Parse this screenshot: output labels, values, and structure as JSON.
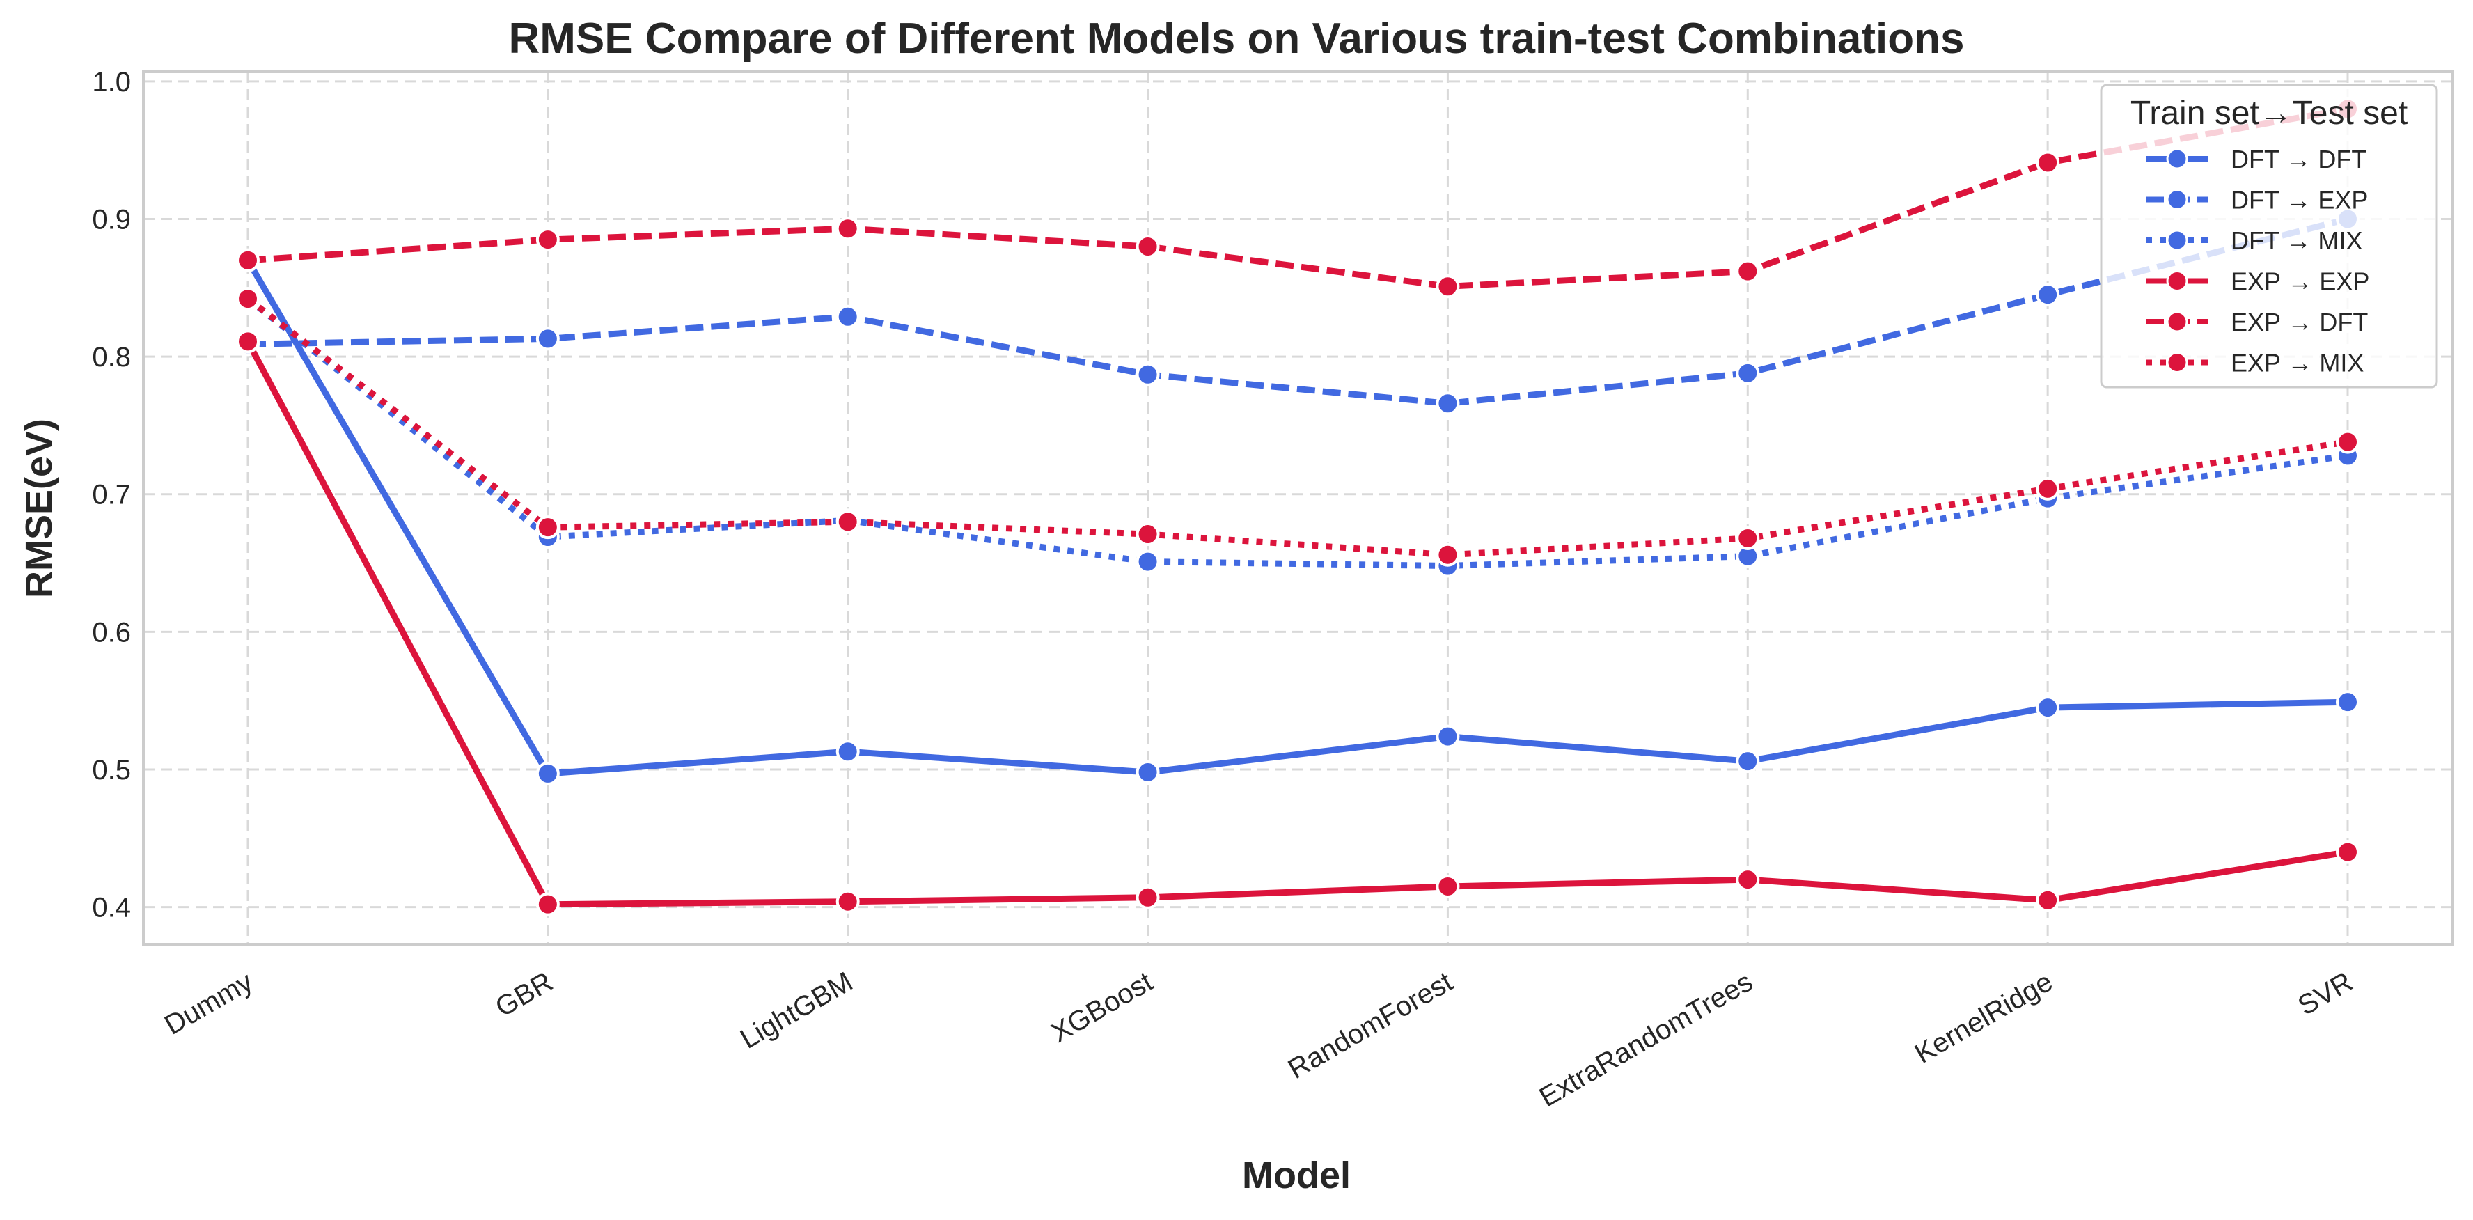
{
  "chart_data": {
    "type": "line",
    "title": "RMSE Compare of Different Models on Various train-test Combinations",
    "xlabel": "Model",
    "ylabel": "RMSE(eV)",
    "categories": [
      "Dummy",
      "GBR",
      "LightGBM",
      "XGBoost",
      "RandomForest",
      "ExtraRandomTrees",
      "KernelRidge",
      "SVR"
    ],
    "yticks": [
      "0.4",
      "0.5",
      "0.6",
      "0.7",
      "0.8",
      "0.9",
      "1.0"
    ],
    "ylim": [
      0.373,
      1.007
    ],
    "grid": true,
    "legend": {
      "title": "Train set→Test set",
      "placement": "top-right"
    },
    "series": [
      {
        "name": "DFT → DFT",
        "color": "#4169E1",
        "style": "solid",
        "values": [
          0.87,
          0.497,
          0.513,
          0.498,
          0.524,
          0.506,
          0.545,
          0.549
        ]
      },
      {
        "name": "DFT → EXP",
        "color": "#4169E1",
        "style": "dashed",
        "values": [
          0.809,
          0.813,
          0.829,
          0.787,
          0.766,
          0.788,
          0.845,
          0.9
        ]
      },
      {
        "name": "DFT → MIX",
        "color": "#4169E1",
        "style": "dotted",
        "values": [
          0.842,
          0.669,
          0.681,
          0.651,
          0.648,
          0.655,
          0.697,
          0.728
        ]
      },
      {
        "name": "EXP → EXP",
        "color": "#DC143C",
        "style": "solid",
        "values": [
          0.811,
          0.402,
          0.404,
          0.407,
          0.415,
          0.42,
          0.405,
          0.44
        ]
      },
      {
        "name": "EXP → DFT",
        "color": "#DC143C",
        "style": "dashed",
        "values": [
          0.87,
          0.885,
          0.893,
          0.88,
          0.851,
          0.862,
          0.941,
          0.98
        ]
      },
      {
        "name": "EXP → MIX",
        "color": "#DC143C",
        "style": "dotted",
        "values": [
          0.842,
          0.676,
          0.68,
          0.671,
          0.656,
          0.668,
          0.704,
          0.738
        ]
      }
    ]
  }
}
